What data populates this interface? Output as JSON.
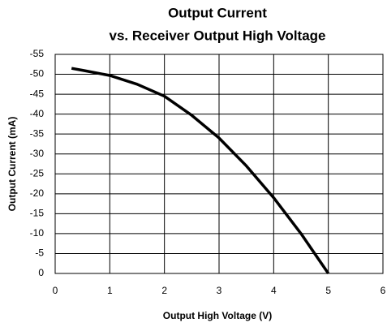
{
  "chart_data": {
    "type": "line",
    "title": [
      "Output Current",
      "vs. Receiver Output High Voltage"
    ],
    "x_label": "Output High Voltage (V)",
    "y_label": "Output Current (mA)",
    "x": [
      0.3,
      0.5,
      1,
      1.5,
      2,
      2.5,
      3,
      3.5,
      4,
      4.5,
      5
    ],
    "series": [
      {
        "name": "Output Current",
        "color": "#000000",
        "values": [
          -51.5,
          -51,
          -49.7,
          -47.5,
          -44.5,
          -39.7,
          -34,
          -27,
          -19,
          -10,
          0
        ]
      }
    ],
    "xlim": [
      0,
      6
    ],
    "xticks": [
      0,
      1,
      2,
      3,
      4,
      5,
      6
    ],
    "ylim": [
      0,
      -55
    ],
    "yticks": [
      0,
      -5,
      -10,
      -15,
      -20,
      -25,
      -30,
      -35,
      -40,
      -45,
      -50,
      -55
    ],
    "grid": true
  }
}
